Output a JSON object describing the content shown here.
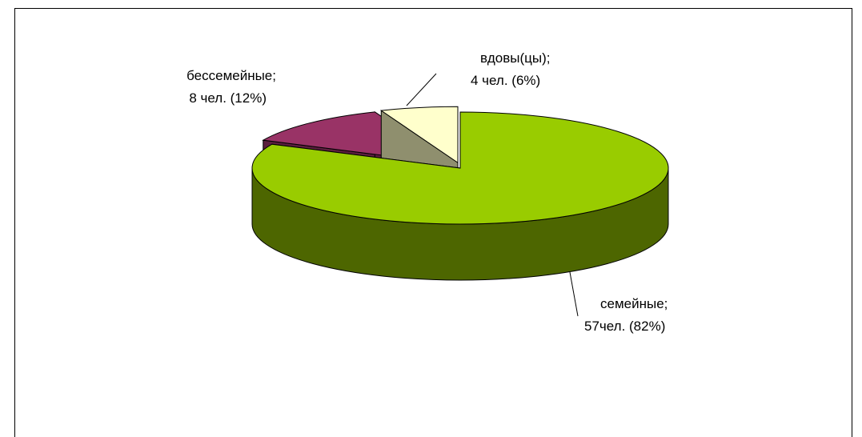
{
  "chart_data": {
    "type": "pie",
    "categories": [
      "семейные;",
      "бессемейные;",
      "вдовы(цы);"
    ],
    "values": [
      82,
      12,
      6
    ],
    "value_labels": [
      "57чел. (82%)",
      "8 чел. (12%)",
      "4 чел.  (6%)"
    ],
    "colors": [
      "#99cc00",
      "#993366",
      "#ffffcc"
    ],
    "side_colors": [
      "#4d6600",
      "#5c1f3e",
      "#8f8f6e"
    ]
  }
}
